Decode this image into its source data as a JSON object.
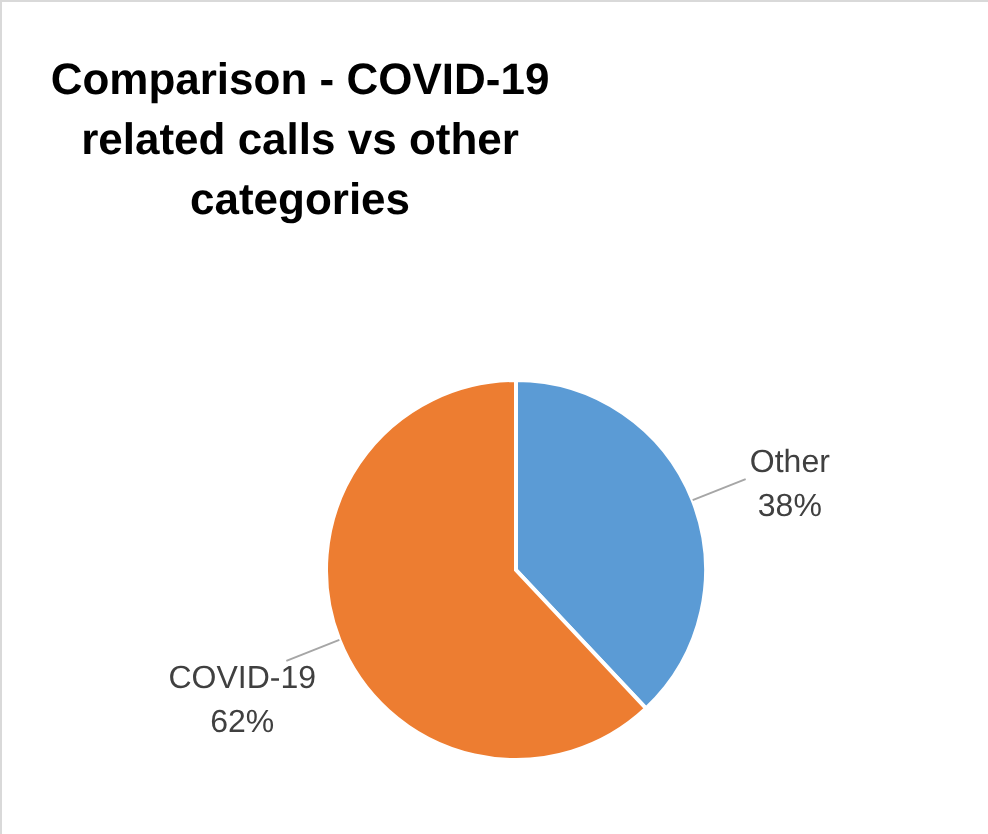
{
  "chart_data": {
    "type": "pie",
    "title": "Comparison - COVID-19\nrelated calls vs other\ncategories",
    "categories": [
      "Other",
      "COVID-19"
    ],
    "values": [
      38,
      62
    ],
    "colors": [
      "#5b9bd5",
      "#ed7d31"
    ],
    "value_labels": [
      "38%",
      "62%"
    ]
  }
}
